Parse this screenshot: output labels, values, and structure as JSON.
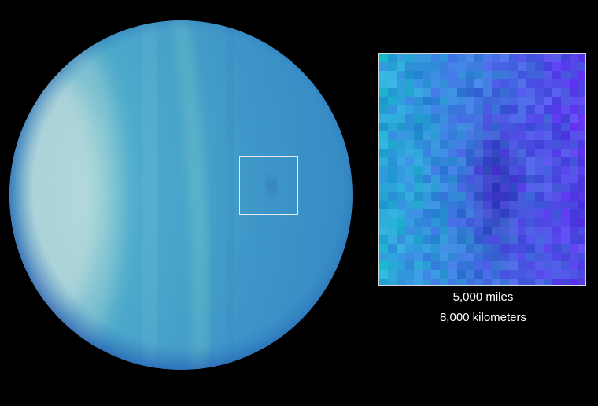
{
  "scale": {
    "miles_label": "5,000 miles",
    "kilometers_label": "8,000 kilometers"
  },
  "colors": {
    "background": "#000000",
    "planet_base": "#3a9cc8",
    "planet_limb": "#1a50b0",
    "bright_band": "#e8f4e0",
    "inset_base": "#3878d8",
    "dark_spot": "#301c8a",
    "frame": "#e8e8e8"
  }
}
